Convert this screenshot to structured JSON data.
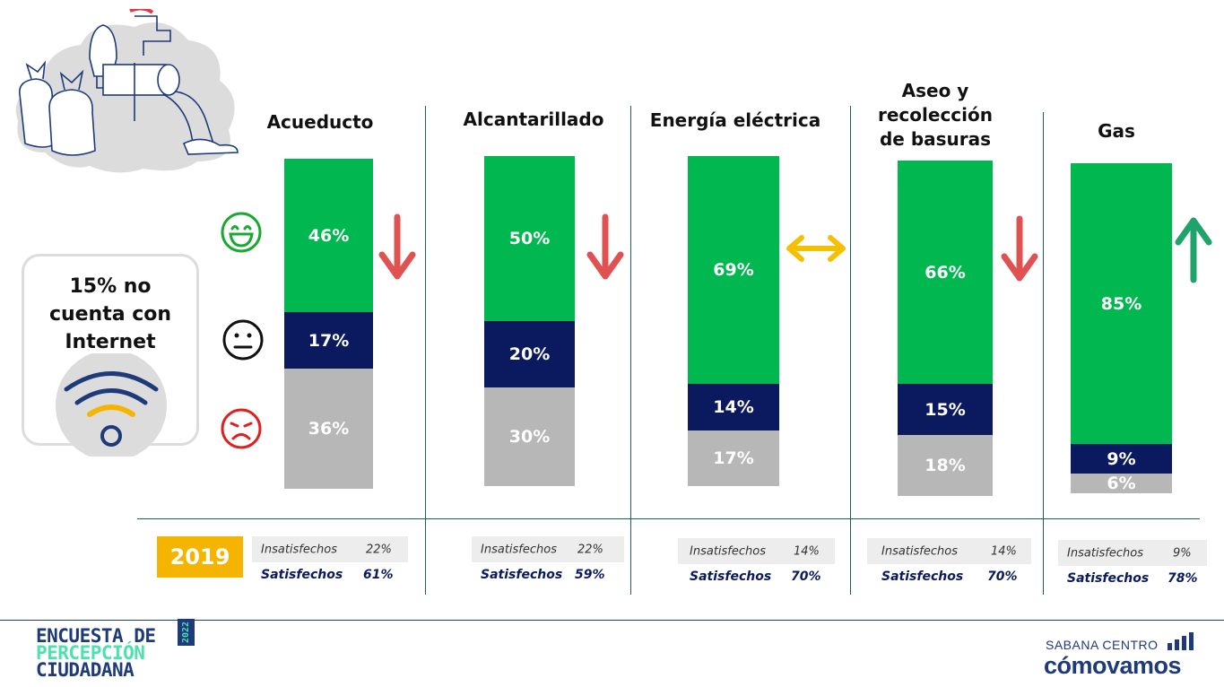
{
  "chart_data": {
    "type": "bar",
    "stacked": true,
    "categories": [
      "Acueducto",
      "Alcantarillado",
      "Energía eléctrica",
      "Aseo y recolección de basuras",
      "Gas"
    ],
    "series": [
      {
        "name": "",
        "color": "#00b84f",
        "values": [
          46,
          50,
          69,
          66,
          85
        ]
      },
      {
        "name": "",
        "color": "#0b1a5e",
        "values": [
          17,
          20,
          14,
          15,
          9
        ]
      },
      {
        "name": "",
        "color": "#b7b7b7",
        "values": [
          36,
          30,
          17,
          18,
          6
        ]
      }
    ],
    "labels": {
      "satisfied": [
        "46%",
        "50%",
        "69%",
        "66%",
        "85%"
      ],
      "neutral": [
        "17%",
        "20%",
        "14%",
        "15%",
        "9%"
      ],
      "unsatisfied": [
        "36%",
        "30%",
        "17%",
        "18%",
        "6%"
      ]
    },
    "trend": [
      "down",
      "down",
      "equal",
      "down",
      "up"
    ],
    "trend_colors": {
      "down": "#e05252",
      "equal": "#f5c000",
      "up": "#1fa36a"
    }
  },
  "titles": {
    "acueducto": "Acueducto",
    "alcantarillado": "Alcantarillado",
    "energia": "Energía eléctrica",
    "aseo_line1": "Aseo y",
    "aseo_line2": "recolección",
    "aseo_line3": "de basuras",
    "gas": "Gas"
  },
  "comparison": {
    "year": "2019",
    "year_color": "#f5b400",
    "label_insatisfechos": "Insatisfechos",
    "label_satisfechos": "Satisfechos",
    "insatisfechos": [
      "22%",
      "22%",
      "14%",
      "14%",
      "9%"
    ],
    "satisfechos": [
      "61%",
      "59%",
      "70%",
      "70%",
      "78%"
    ]
  },
  "internet": {
    "line1": "15% no",
    "line2": "cuenta con",
    "line3": "Internet"
  },
  "faces": [
    "happy-face",
    "neutral-face",
    "sad-face"
  ],
  "footer": {
    "logo_left": {
      "line1": "ENCUESTA DE",
      "line2": "PERCEPCIÓN",
      "line3": "CIUDADANA",
      "year": "2022"
    },
    "logo_right": {
      "line1": "SABANA CENTRO",
      "line2": "cómovamos"
    }
  }
}
